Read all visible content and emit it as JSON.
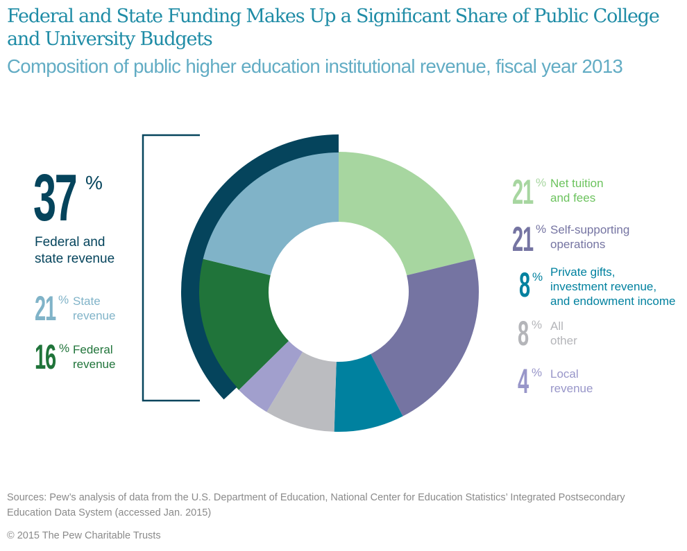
{
  "header": {
    "title": "Federal and State Funding Makes Up a Significant Share of Public College and University Budgets",
    "subtitle": "Composition of public higher education institutional revenue, fiscal year 2013"
  },
  "chart_data": {
    "type": "pie",
    "variant": "donut",
    "title": "Federal and State Funding Makes Up a Significant Share of Public College and University Budgets",
    "subtitle": "Composition of public higher education institutional revenue, fiscal year 2013",
    "unit": "%",
    "start": "top",
    "direction": "clockwise",
    "slices": [
      {
        "label": "Net tuition and fees",
        "value": 21,
        "color": "#a7d6a0",
        "text_color": "#6cc35e"
      },
      {
        "label": "Self-supporting operations",
        "value": 21,
        "color": "#7574a2",
        "text_color": "#7574a2"
      },
      {
        "label": "Private gifts, investment revenue, and endowment income",
        "value": 8,
        "color": "#00819f",
        "text_color": "#00819f"
      },
      {
        "label": "All other",
        "value": 8,
        "color": "#bbbcc0",
        "text_color": "#b4b5b9"
      },
      {
        "label": "Local revenue",
        "value": 4,
        "color": "#a19fcd",
        "text_color": "#9896c9"
      },
      {
        "label": "Federal revenue",
        "value": 16,
        "color": "#20743a",
        "text_color": "#20743a"
      },
      {
        "label": "State revenue",
        "value": 21,
        "color": "#80b3c8",
        "text_color": "#80b3c8"
      }
    ],
    "highlight_group": {
      "label": "Federal and state revenue",
      "value": 37,
      "members": [
        "State revenue",
        "Federal revenue"
      ],
      "color": "#05445c"
    },
    "legend_placement": "left and right"
  },
  "left_panel": {
    "total_value": "37",
    "total_pct": "%",
    "total_label_line1": "Federal and",
    "total_label_line2": "state revenue",
    "items": [
      {
        "value": "21",
        "pct": "%",
        "line1": "State",
        "line2": "revenue"
      },
      {
        "value": "16",
        "pct": "%",
        "line1": "Federal",
        "line2": "revenue"
      }
    ]
  },
  "right_legend": [
    {
      "value": "21",
      "pct": "%",
      "lines": [
        "Net tuition",
        "and fees"
      ]
    },
    {
      "value": "21",
      "pct": "%",
      "lines": [
        "Self-supporting",
        "operations"
      ]
    },
    {
      "value": "8",
      "pct": "%",
      "lines": [
        "Private gifts,",
        "investment revenue,",
        "and endowment income"
      ]
    },
    {
      "value": "8",
      "pct": "%",
      "lines": [
        "All",
        "other"
      ]
    },
    {
      "value": "4",
      "pct": "%",
      "lines": [
        "Local",
        "revenue"
      ]
    }
  ],
  "footer": {
    "sources_line1": "Sources: Pew’s analysis of data from the U.S. Department of Education, National Center for Education Statistics’ Integrated Postsecondary",
    "sources_line2": "Education Data System (accessed Jan. 2015)",
    "copyright": "© 2015 The Pew Charitable Trusts"
  }
}
